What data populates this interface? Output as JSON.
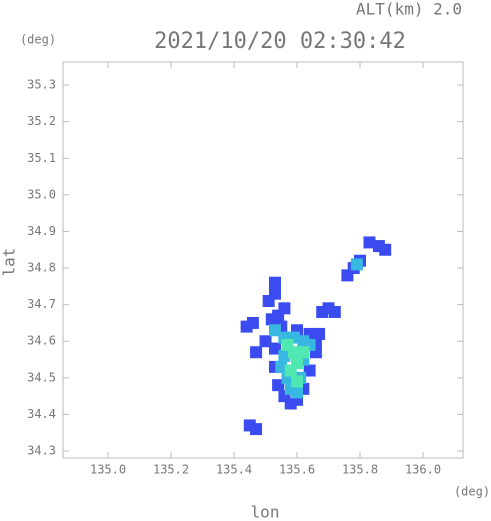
{
  "chart_data": {
    "type": "scatter",
    "title": "2021/10/20 02:30:42",
    "subtitle": "ALT(km) 2.0",
    "y_unit": "(deg)",
    "x_unit": "(deg)",
    "x_label": "lon",
    "y_label": "lat",
    "xlim": [
      134.857,
      136.127
    ],
    "ylim": [
      34.281,
      35.363
    ],
    "xticks": [
      {
        "value": 135,
        "label": "135.0"
      },
      135.2,
      135.4,
      135.6,
      135.8,
      {
        "value": 136,
        "label": "136.0"
      }
    ],
    "yticks": [
      34.3,
      34.4,
      34.5,
      34.6,
      34.7,
      34.8,
      34.9,
      {
        "value": 35,
        "label": "35.0"
      },
      35.1,
      35.2,
      35.3
    ],
    "series": [
      {
        "color": "#3a4cf0",
        "x": [
          135.52,
          135.54,
          135.55,
          135.6,
          135.64,
          135.67,
          135.46,
          135.44,
          135.56,
          135.51,
          135.53,
          135.53,
          135.53,
          135.54,
          135.56,
          135.58,
          135.6,
          135.62,
          135.64,
          135.66,
          135.66,
          135.5,
          135.47,
          135.68,
          135.7,
          135.72,
          135.76,
          135.78,
          135.8,
          135.86,
          135.88,
          135.83,
          135.45,
          135.47,
          135.53
        ],
        "y": [
          34.66,
          34.67,
          34.64,
          34.63,
          34.62,
          34.62,
          34.65,
          34.64,
          34.69,
          34.71,
          34.76,
          34.58,
          34.53,
          34.48,
          34.45,
          34.43,
          34.44,
          34.47,
          34.52,
          34.57,
          34.6,
          34.6,
          34.57,
          34.68,
          34.69,
          34.68,
          34.78,
          34.8,
          34.82,
          34.86,
          34.85,
          34.87,
          34.37,
          34.36,
          34.73
        ]
      },
      {
        "color": "#38b8e0",
        "x": [
          135.56,
          135.59,
          135.62,
          135.64,
          135.56,
          135.62,
          135.57,
          135.61,
          135.58,
          135.6,
          135.55,
          135.53,
          135.79
        ],
        "y": [
          34.61,
          34.61,
          34.6,
          34.59,
          34.56,
          34.55,
          34.5,
          34.5,
          34.47,
          34.46,
          34.53,
          34.63,
          34.81
        ]
      },
      {
        "color": "#4ee8b0",
        "x": [
          135.59,
          135.6,
          135.58,
          135.6,
          135.62,
          135.57
        ],
        "y": [
          34.57,
          34.54,
          34.52,
          34.49,
          34.57,
          34.59
        ]
      }
    ]
  }
}
